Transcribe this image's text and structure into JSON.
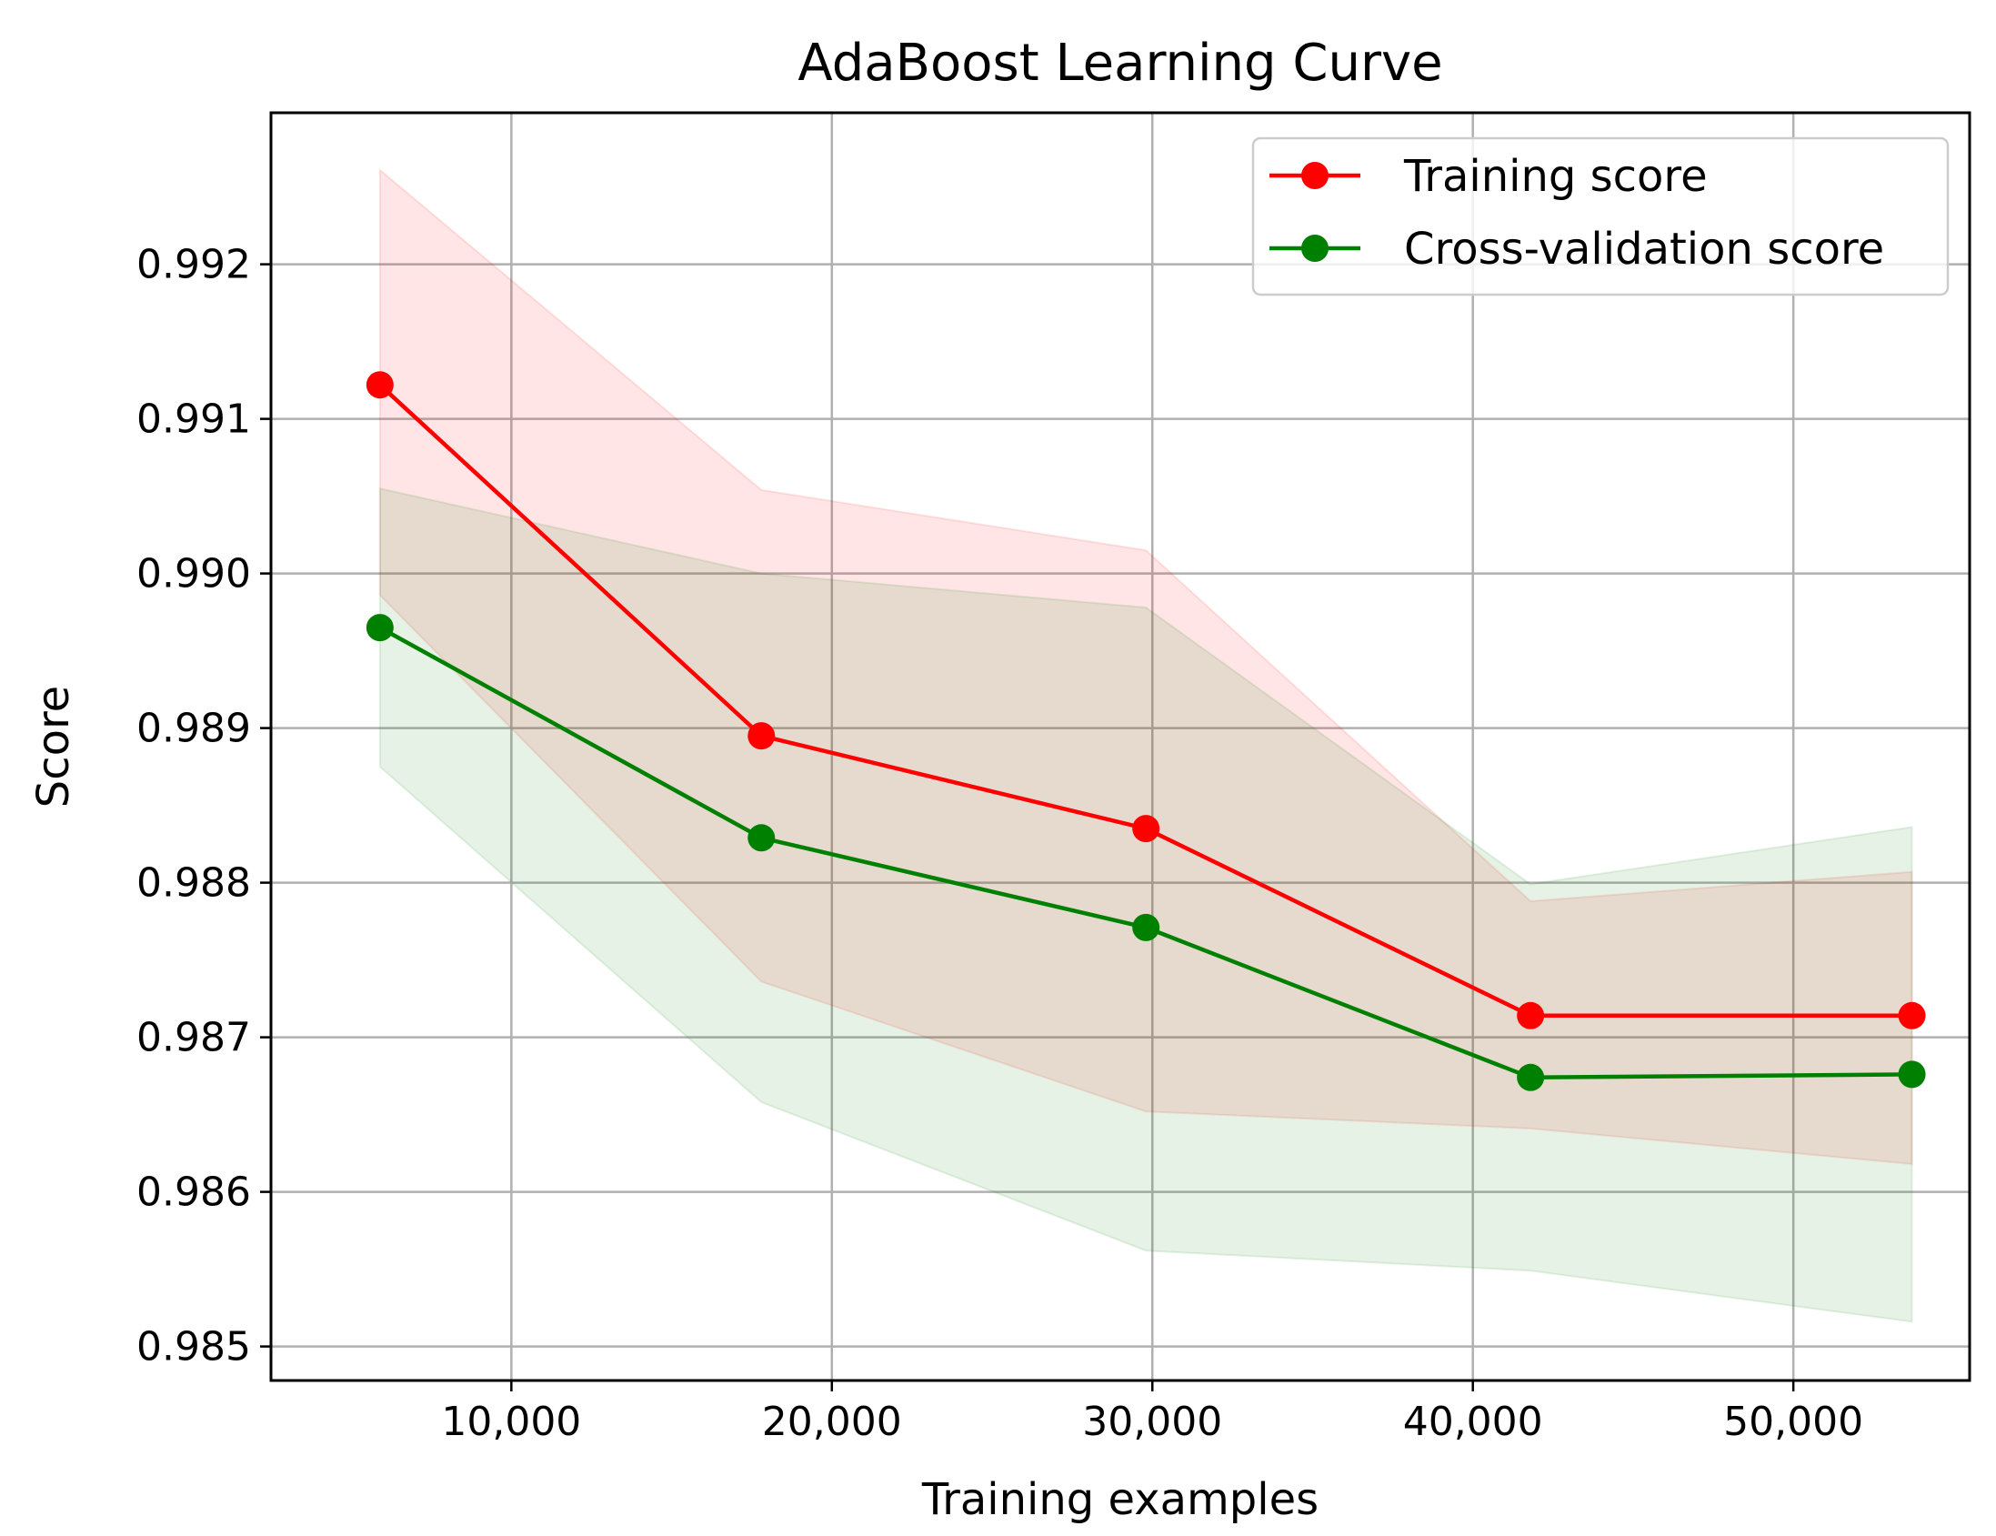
{
  "chart_data": {
    "type": "line",
    "title": "AdaBoost Learning Curve",
    "xlabel": "Training examples",
    "ylabel": "Score",
    "xlim": [
      2500,
      55500
    ],
    "ylim": [
      0.98478,
      0.99298
    ],
    "x_ticks": [
      10000,
      20000,
      30000,
      40000,
      50000
    ],
    "x_tick_labels": [
      "10,000",
      "20,000",
      "30,000",
      "40,000",
      "50,000"
    ],
    "y_ticks": [
      0.985,
      0.986,
      0.987,
      0.988,
      0.989,
      0.99,
      0.991,
      0.992
    ],
    "y_tick_labels": [
      "0.985",
      "0.986",
      "0.987",
      "0.988",
      "0.989",
      "0.990",
      "0.991",
      "0.992"
    ],
    "grid": true,
    "legend_position": "top-right",
    "x": [
      5900,
      17800,
      29800,
      41800,
      53700
    ],
    "series": [
      {
        "name": "Training score",
        "color": "#ff0000",
        "marker": "circle",
        "values": [
          0.99122,
          0.98895,
          0.98835,
          0.98714,
          0.98714
        ],
        "band_lower": [
          0.98986,
          0.98736,
          0.98652,
          0.98641,
          0.98618
        ],
        "band_upper": [
          0.99261,
          0.99054,
          0.99015,
          0.98788,
          0.98807
        ],
        "band_color": "#ff0000"
      },
      {
        "name": "Cross-validation score",
        "color": "#008000",
        "marker": "circle",
        "values": [
          0.98965,
          0.98829,
          0.98771,
          0.98674,
          0.98676
        ],
        "band_lower": [
          0.98875,
          0.98658,
          0.98562,
          0.98549,
          0.98516
        ],
        "band_upper": [
          0.99055,
          0.99,
          0.98978,
          0.98799,
          0.98836
        ],
        "band_color": "#008000"
      }
    ]
  }
}
